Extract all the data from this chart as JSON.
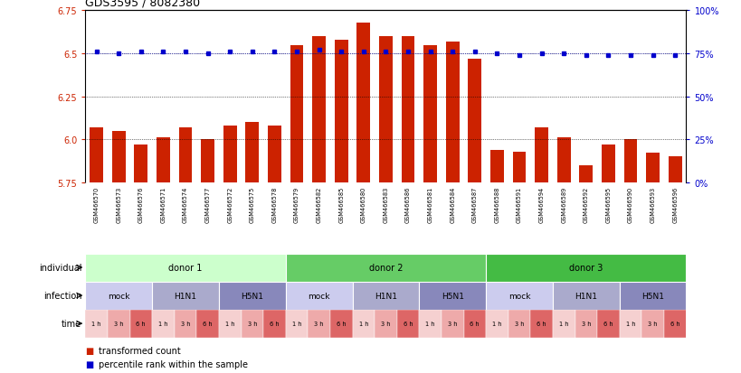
{
  "title": "GDS3595 / 8082380",
  "samples": [
    "GSM466570",
    "GSM466573",
    "GSM466576",
    "GSM466571",
    "GSM466574",
    "GSM466577",
    "GSM466572",
    "GSM466575",
    "GSM466578",
    "GSM466579",
    "GSM466582",
    "GSM466585",
    "GSM466580",
    "GSM466583",
    "GSM466586",
    "GSM466581",
    "GSM466584",
    "GSM466587",
    "GSM466588",
    "GSM466591",
    "GSM466594",
    "GSM466589",
    "GSM466592",
    "GSM466595",
    "GSM466590",
    "GSM466593",
    "GSM466596"
  ],
  "bar_values": [
    6.07,
    6.05,
    5.97,
    6.01,
    6.07,
    6.0,
    6.08,
    6.1,
    6.08,
    6.55,
    6.6,
    6.58,
    6.68,
    6.6,
    6.6,
    6.55,
    6.57,
    6.47,
    5.94,
    5.93,
    6.07,
    6.01,
    5.85,
    5.97,
    6.0,
    5.92,
    5.9
  ],
  "dot_values": [
    76,
    75,
    76,
    76,
    76,
    75,
    76,
    76,
    76,
    76,
    77,
    76,
    76,
    76,
    76,
    76,
    76,
    76,
    75,
    74,
    75,
    75,
    74,
    74,
    74,
    74,
    74
  ],
  "bar_color": "#cc2200",
  "dot_color": "#0000cc",
  "ylim_left": [
    5.75,
    6.75
  ],
  "ylim_right": [
    0,
    100
  ],
  "yticks_left": [
    5.75,
    6.0,
    6.25,
    6.5,
    6.75
  ],
  "yticks_right": [
    0,
    25,
    50,
    75,
    100
  ],
  "ytick_labels_right": [
    "0%",
    "25%",
    "50%",
    "75%",
    "100%"
  ],
  "grid_values": [
    6.0,
    6.25,
    6.5
  ],
  "individual_donors": [
    {
      "label": "donor 1",
      "start": 0,
      "end": 9,
      "color": "#ccffcc"
    },
    {
      "label": "donor 2",
      "start": 9,
      "end": 18,
      "color": "#66cc66"
    },
    {
      "label": "donor 3",
      "start": 18,
      "end": 27,
      "color": "#44bb44"
    }
  ],
  "infection_groups": [
    {
      "label": "mock",
      "start": 0,
      "end": 3,
      "color": "#ccccee"
    },
    {
      "label": "H1N1",
      "start": 3,
      "end": 6,
      "color": "#aaaacc"
    },
    {
      "label": "H5N1",
      "start": 6,
      "end": 9,
      "color": "#8888bb"
    },
    {
      "label": "mock",
      "start": 9,
      "end": 12,
      "color": "#ccccee"
    },
    {
      "label": "H1N1",
      "start": 12,
      "end": 15,
      "color": "#aaaacc"
    },
    {
      "label": "H5N1",
      "start": 15,
      "end": 18,
      "color": "#8888bb"
    },
    {
      "label": "mock",
      "start": 18,
      "end": 21,
      "color": "#ccccee"
    },
    {
      "label": "H1N1",
      "start": 21,
      "end": 24,
      "color": "#aaaacc"
    },
    {
      "label": "H5N1",
      "start": 24,
      "end": 27,
      "color": "#8888bb"
    }
  ],
  "time_labels": [
    "1 h",
    "3 h",
    "6 h",
    "1 h",
    "3 h",
    "6 h",
    "1 h",
    "3 h",
    "6 h",
    "1 h",
    "3 h",
    "6 h",
    "1 h",
    "3 h",
    "6 h",
    "1 h",
    "3 h",
    "6 h",
    "1 h",
    "3 h",
    "6 h",
    "1 h",
    "3 h",
    "6 h",
    "1 h",
    "3 h",
    "6 h"
  ],
  "time_colors": [
    "#f5d0d0",
    "#eeaaaa",
    "#dd6666",
    "#f5d0d0",
    "#eeaaaa",
    "#dd6666",
    "#f5d0d0",
    "#eeaaaa",
    "#dd6666",
    "#f5d0d0",
    "#eeaaaa",
    "#dd6666",
    "#f5d0d0",
    "#eeaaaa",
    "#dd6666",
    "#f5d0d0",
    "#eeaaaa",
    "#dd6666",
    "#f5d0d0",
    "#eeaaaa",
    "#dd6666",
    "#f5d0d0",
    "#eeaaaa",
    "#dd6666",
    "#f5d0d0",
    "#eeaaaa",
    "#dd6666"
  ],
  "row_labels": [
    "individual",
    "infection",
    "time"
  ],
  "legend_bar_label": "transformed count",
  "legend_dot_label": "percentile rank within the sample",
  "bg_color": "#ffffff",
  "label_col_color": "#dddddd",
  "sample_row_color": "#d8d8d8"
}
